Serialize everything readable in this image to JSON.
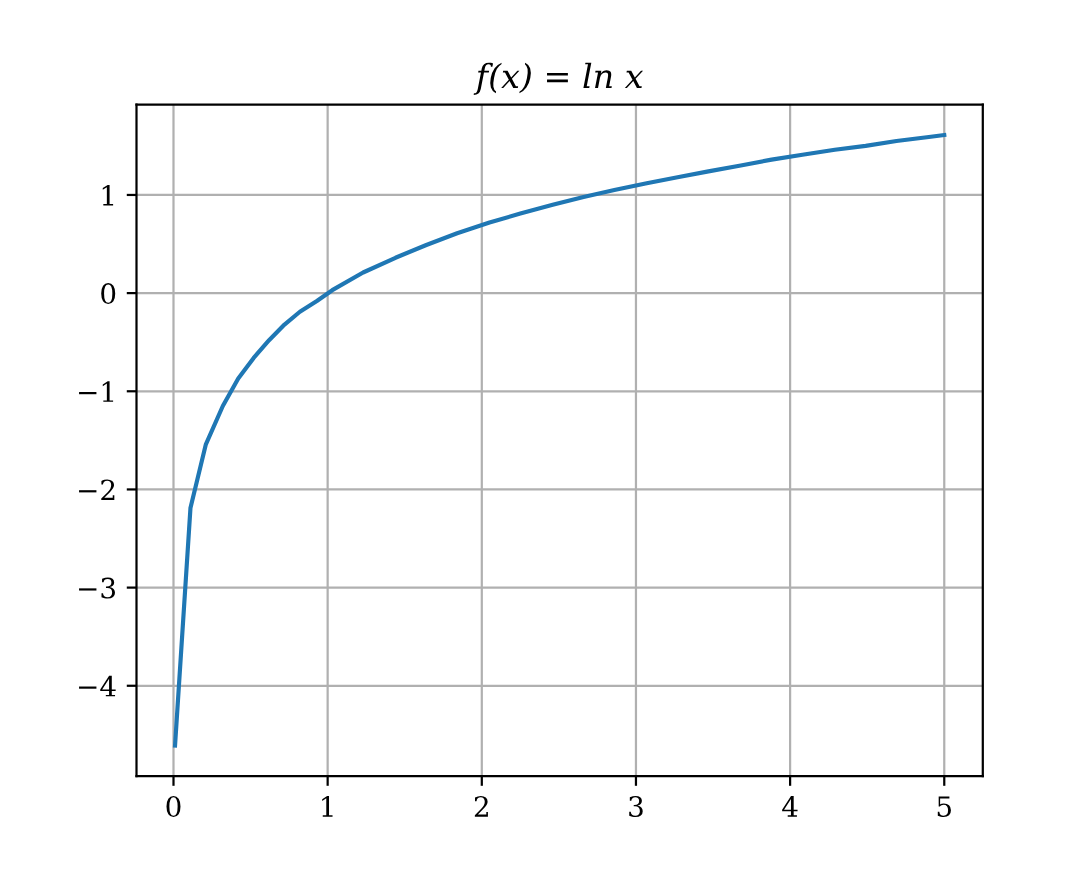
{
  "chart_data": {
    "type": "line",
    "title": "f(x) = ln x",
    "x": [
      0.01,
      0.11,
      0.21,
      0.32,
      0.42,
      0.52,
      0.62,
      0.72,
      0.82,
      0.93,
      1.03,
      1.23,
      1.44,
      1.64,
      1.84,
      2.05,
      2.25,
      2.46,
      2.66,
      2.86,
      3.07,
      3.27,
      3.47,
      3.68,
      3.88,
      4.08,
      4.29,
      4.49,
      4.69,
      4.9,
      5.0
    ],
    "series": [
      {
        "color": "#1f77b4",
        "values": [
          -4.61,
          -2.19,
          -1.54,
          -1.15,
          -0.87,
          -0.66,
          -0.48,
          -0.32,
          -0.19,
          -0.08,
          0.03,
          0.21,
          0.36,
          0.49,
          0.61,
          0.72,
          0.81,
          0.9,
          0.98,
          1.05,
          1.12,
          1.18,
          1.24,
          1.3,
          1.36,
          1.41,
          1.46,
          1.5,
          1.55,
          1.59,
          1.61
        ]
      }
    ],
    "xlim": [
      -0.24,
      5.25
    ],
    "ylim": [
      -4.92,
      1.92
    ],
    "xticks": [
      0,
      1,
      2,
      3,
      4,
      5
    ],
    "yticks": [
      -4,
      -3,
      -2,
      -1,
      0,
      1
    ],
    "grid": true,
    "marker": "none",
    "line_style": "solid"
  }
}
